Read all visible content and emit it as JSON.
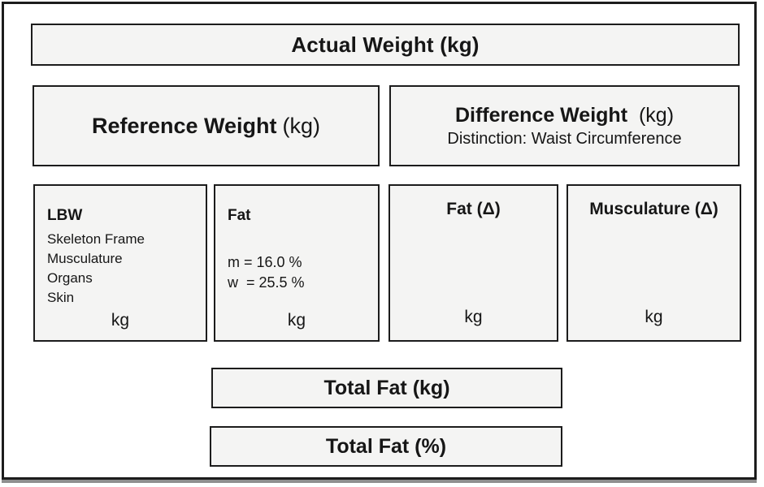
{
  "diagram": {
    "actual_weight": {
      "label": "Actual Weight (kg)"
    },
    "reference_weight": {
      "label_bold": "Reference Weight",
      "label_unit": "(kg)"
    },
    "difference_weight": {
      "label_bold": "Difference Weight",
      "label_unit": "(kg)",
      "subtitle": "Distinction: Waist Circumference"
    },
    "lbw": {
      "title": "LBW",
      "items": [
        "Skeleton Frame",
        "Musculature",
        "Organs",
        "Skin"
      ],
      "unit": "kg"
    },
    "fat": {
      "title": "Fat",
      "lines": [
        "m = 16.0 %",
        "w  = 25.5 %"
      ],
      "unit": "kg"
    },
    "fat_delta": {
      "title": "Fat (Δ)",
      "unit": "kg"
    },
    "musculature_delta": {
      "title": "Musculature (Δ)",
      "unit": "kg"
    },
    "total_fat_kg": {
      "label": "Total Fat (kg)"
    },
    "total_fat_pct": {
      "label": "Total Fat (%)"
    }
  },
  "colors": {
    "background": "#ffffff",
    "box_fill": "#f4f4f3",
    "border": "#1c1c1c"
  }
}
